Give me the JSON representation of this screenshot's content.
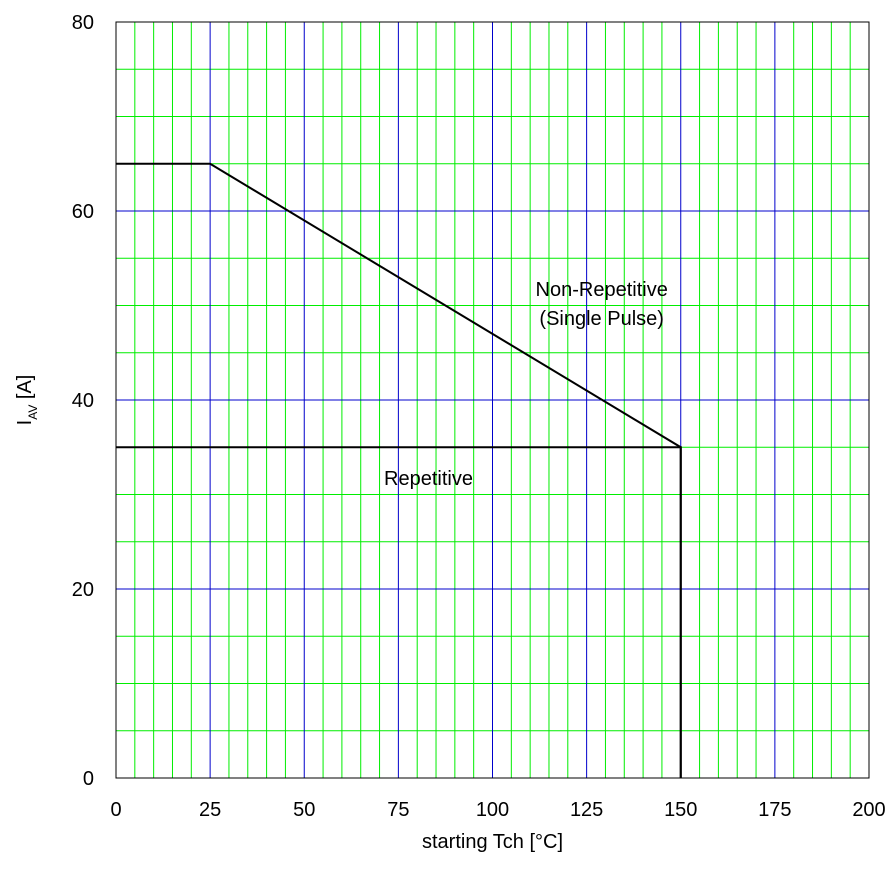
{
  "chart_data": {
    "type": "line",
    "xlabel": "starting Tch [°C]",
    "ylabel": {
      "main": "I",
      "sub": "AV",
      "unit": " [A]"
    },
    "xlim": [
      0,
      200
    ],
    "ylim": [
      0,
      80
    ],
    "xticks": [
      "0",
      "25",
      "50",
      "75",
      "100",
      "125",
      "150",
      "175",
      "200"
    ],
    "yticks": [
      "0",
      "20",
      "40",
      "60",
      "80"
    ],
    "grid": {
      "minor_x_step": 5,
      "minor_y_step": 5,
      "major_x_step": 25,
      "major_y_step": 20,
      "minor_color": "#00ee00",
      "major_color": "#0000cc"
    },
    "series": [
      {
        "label": "Non-Repetitive (Single Pulse)",
        "x": [
          0,
          25,
          150,
          150
        ],
        "y": [
          65,
          65,
          35,
          0
        ]
      },
      {
        "label": "Repetitive",
        "x": [
          0,
          150,
          150
        ],
        "y": [
          35,
          35,
          0
        ]
      }
    ],
    "annotations": [
      {
        "lines": [
          "Non-Repetitive",
          "(Single Pulse)"
        ],
        "x": 129,
        "y": 51
      },
      {
        "lines": [
          "Repetitive"
        ],
        "x": 83,
        "y": 31
      }
    ],
    "line_color": "#000000"
  }
}
